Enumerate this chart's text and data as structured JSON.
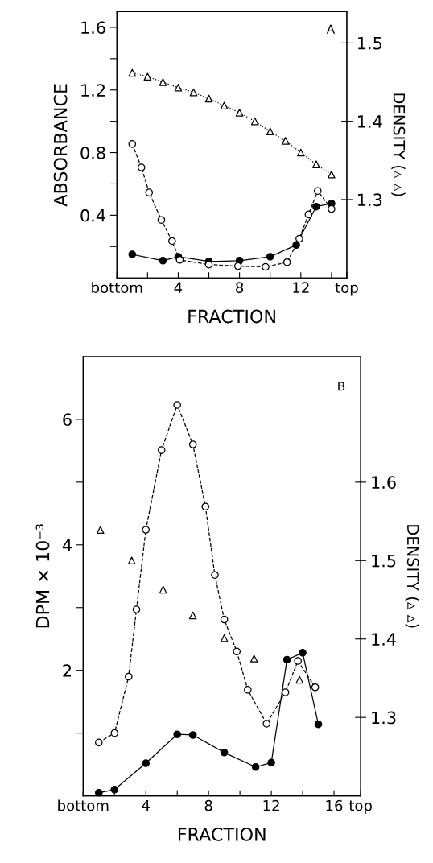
{
  "chart_data": [
    {
      "type": "line",
      "xlabel": "FRACTION",
      "ylabel": "ABSORBANCE",
      "y2label": "DENSITY (▵ ▵)",
      "annotations": [
        "A"
      ],
      "xlim": [
        0,
        15
      ],
      "xticks": [
        {
          "value": 0,
          "label": "bottom"
        },
        {
          "value": 2,
          "label": null
        },
        4,
        {
          "value": 6,
          "label": null
        },
        8,
        {
          "value": 10,
          "label": null
        },
        12,
        {
          "value": 14,
          "label": null
        },
        {
          "value": 15,
          "label": "top"
        }
      ],
      "ylim": [
        0,
        1.7
      ],
      "yticks": [
        {
          "value": 0.2,
          "label": null
        },
        0.4,
        {
          "value": 0.6,
          "label": null
        },
        0.8,
        {
          "value": 1.0,
          "label": null
        },
        1.2,
        {
          "value": 1.4,
          "label": null
        },
        1.6
      ],
      "y2lim": [
        1.2,
        1.54
      ],
      "y2ticks": [
        1.3,
        1.4,
        1.5
      ],
      "series": [
        {
          "color": "#000000",
          "marker": "circle",
          "line_style": "solid",
          "x": [
            1,
            3,
            4,
            6,
            8,
            10,
            11.7,
            13,
            14
          ],
          "values": [
            0.15,
            0.11,
            0.135,
            0.105,
            0.11,
            0.135,
            0.21,
            0.455,
            0.475
          ]
        },
        {
          "color": "#000000",
          "marker": "circle",
          "line_style": "dashed",
          "x": [
            1,
            1.6,
            2.1,
            2.9,
            3.6,
            4.1,
            6,
            7.9,
            9.7,
            11.1,
            11.9,
            12.5,
            13.1,
            14
          ],
          "values": [
            0.855,
            0.705,
            0.545,
            0.37,
            0.235,
            0.115,
            0.085,
            0.075,
            0.07,
            0.1,
            0.25,
            0.405,
            0.555,
            0.44
          ]
        },
        {
          "color": "#000000",
          "marker": "triangle",
          "line_style": "dotted",
          "axis": "y2",
          "x": [
            1,
            2,
            3,
            4,
            5,
            6,
            7,
            8,
            9,
            10,
            11,
            12,
            13,
            14
          ],
          "values": [
            1.462,
            1.457,
            1.45,
            1.443,
            1.437,
            1.429,
            1.42,
            1.411,
            1.4,
            1.387,
            1.375,
            1.36,
            1.345,
            1.332
          ]
        }
      ]
    },
    {
      "type": "line",
      "xlabel": "FRACTION",
      "ylabel": "DPM × 10⁻³",
      "y2label": "DENSITY (▵ ▵)",
      "annotations": [
        "B"
      ],
      "xlim": [
        0,
        17.7
      ],
      "xticks": [
        {
          "value": 0,
          "label": "bottom"
        },
        {
          "value": 2,
          "label": null
        },
        4,
        {
          "value": 6,
          "label": null
        },
        8,
        {
          "value": 10,
          "label": null
        },
        12,
        {
          "value": 14,
          "label": null
        },
        16,
        {
          "value": 17.7,
          "label": "top"
        }
      ],
      "ylim": [
        0,
        7
      ],
      "yticks": [
        {
          "value": 1,
          "label": null
        },
        2,
        {
          "value": 3,
          "label": null
        },
        4,
        {
          "value": 5,
          "label": null
        },
        6
      ],
      "y2lim": [
        1.2,
        1.76
      ],
      "y2ticks": [
        1.3,
        1.4,
        1.5,
        1.6
      ],
      "series": [
        {
          "color": "#000000",
          "marker": "circle",
          "line_style": "solid",
          "x": [
            1,
            2,
            4,
            6,
            7,
            9,
            11,
            12,
            13,
            14,
            15
          ],
          "values": [
            0.05,
            0.1,
            0.52,
            0.98,
            0.97,
            0.69,
            0.46,
            0.53,
            2.17,
            2.28,
            1.14
          ]
        },
        {
          "color": "#000000",
          "marker": "circle",
          "line_style": "dashed",
          "x": [
            1,
            2,
            2.9,
            3.4,
            4,
            5,
            6,
            7,
            7.8,
            8.4,
            9,
            9.8,
            10.5,
            11.7,
            12.9,
            13.7,
            14.8
          ],
          "values": [
            0.85,
            1.0,
            1.9,
            2.97,
            4.24,
            5.51,
            6.23,
            5.6,
            4.61,
            3.52,
            2.81,
            2.3,
            1.69,
            1.15,
            1.65,
            2.15,
            1.73
          ]
        },
        {
          "type": "scatter",
          "color": "#000000",
          "marker": "triangle",
          "axis": "y2",
          "x": [
            1.1,
            3.1,
            5.1,
            7,
            9,
            10.9,
            13.8
          ],
          "values": [
            1.539,
            1.5,
            1.463,
            1.43,
            1.401,
            1.375,
            1.348
          ]
        }
      ]
    }
  ]
}
